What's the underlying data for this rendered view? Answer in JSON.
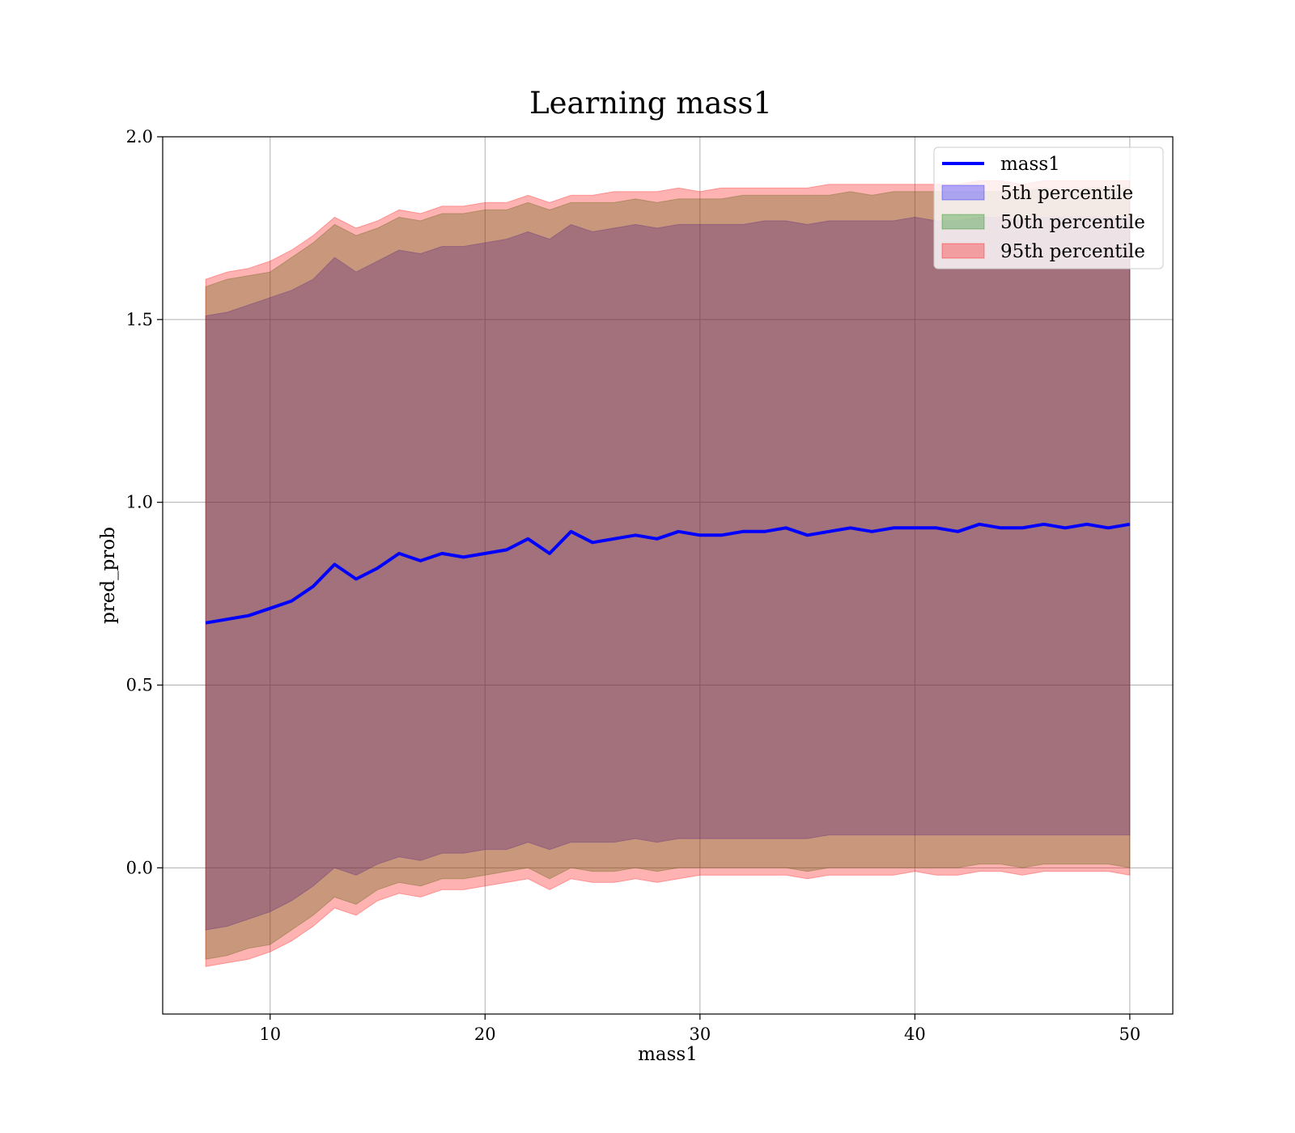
{
  "chart_data": {
    "type": "area",
    "title": "Learning mass1",
    "xlabel": "mass1",
    "ylabel": "pred_prob",
    "xlim": [
      5,
      52
    ],
    "ylim": [
      -0.4,
      2.0
    ],
    "xticks": [
      10,
      20,
      30,
      40,
      50
    ],
    "xtick_labels": [
      "10",
      "20",
      "30",
      "40",
      "50"
    ],
    "yticks": [
      0.0,
      0.5,
      1.0,
      1.5,
      2.0
    ],
    "ytick_labels": [
      "0.0",
      "0.5",
      "1.0",
      "1.5",
      "2.0"
    ],
    "grid": true,
    "legend_position": "top-right",
    "x": [
      7,
      8,
      9,
      10,
      11,
      12,
      13,
      14,
      15,
      16,
      17,
      18,
      19,
      20,
      21,
      22,
      23,
      24,
      25,
      26,
      27,
      28,
      29,
      30,
      31,
      32,
      33,
      34,
      35,
      36,
      37,
      38,
      39,
      40,
      41,
      42,
      43,
      44,
      45,
      46,
      47,
      48,
      49,
      50
    ],
    "line": {
      "name": "mass1",
      "color": "#0000ff",
      "values": [
        0.67,
        0.68,
        0.69,
        0.71,
        0.73,
        0.77,
        0.83,
        0.79,
        0.82,
        0.86,
        0.84,
        0.86,
        0.85,
        0.86,
        0.87,
        0.9,
        0.86,
        0.92,
        0.89,
        0.9,
        0.91,
        0.9,
        0.92,
        0.91,
        0.91,
        0.92,
        0.92,
        0.93,
        0.91,
        0.92,
        0.93,
        0.92,
        0.93,
        0.93,
        0.93,
        0.92,
        0.94,
        0.93,
        0.93,
        0.94,
        0.93,
        0.94,
        0.93,
        0.94
      ]
    },
    "bands": [
      {
        "name": "5th percentile",
        "color": "#0000ff",
        "lower": [
          -0.17,
          -0.16,
          -0.14,
          -0.12,
          -0.09,
          -0.05,
          0.0,
          -0.02,
          0.01,
          0.03,
          0.02,
          0.04,
          0.04,
          0.05,
          0.05,
          0.07,
          0.05,
          0.07,
          0.07,
          0.07,
          0.08,
          0.07,
          0.08,
          0.08,
          0.08,
          0.08,
          0.08,
          0.08,
          0.08,
          0.09,
          0.09,
          0.09,
          0.09,
          0.09,
          0.09,
          0.09,
          0.09,
          0.09,
          0.09,
          0.09,
          0.09,
          0.09,
          0.09,
          0.09
        ],
        "upper": [
          1.51,
          1.52,
          1.54,
          1.56,
          1.58,
          1.61,
          1.67,
          1.63,
          1.66,
          1.69,
          1.68,
          1.7,
          1.7,
          1.71,
          1.72,
          1.74,
          1.72,
          1.76,
          1.74,
          1.75,
          1.76,
          1.75,
          1.76,
          1.76,
          1.76,
          1.76,
          1.77,
          1.77,
          1.76,
          1.77,
          1.77,
          1.77,
          1.77,
          1.78,
          1.77,
          1.77,
          1.78,
          1.78,
          1.77,
          1.78,
          1.78,
          1.78,
          1.78,
          1.78
        ]
      },
      {
        "name": "50th percentile",
        "color": "#008000",
        "lower": [
          -0.25,
          -0.24,
          -0.22,
          -0.21,
          -0.17,
          -0.13,
          -0.08,
          -0.1,
          -0.06,
          -0.04,
          -0.05,
          -0.03,
          -0.03,
          -0.02,
          -0.01,
          0.0,
          -0.03,
          0.0,
          -0.01,
          -0.01,
          0.0,
          -0.01,
          0.0,
          0.0,
          0.0,
          0.0,
          0.0,
          0.0,
          -0.01,
          0.0,
          0.0,
          0.0,
          0.0,
          0.0,
          0.0,
          0.0,
          0.01,
          0.01,
          0.0,
          0.01,
          0.01,
          0.01,
          0.01,
          0.0
        ],
        "upper": [
          1.59,
          1.61,
          1.62,
          1.63,
          1.67,
          1.71,
          1.76,
          1.73,
          1.75,
          1.78,
          1.77,
          1.79,
          1.79,
          1.8,
          1.8,
          1.82,
          1.8,
          1.82,
          1.82,
          1.82,
          1.83,
          1.82,
          1.83,
          1.83,
          1.83,
          1.84,
          1.84,
          1.84,
          1.84,
          1.84,
          1.85,
          1.84,
          1.85,
          1.85,
          1.85,
          1.85,
          1.85,
          1.85,
          1.85,
          1.86,
          1.85,
          1.86,
          1.86,
          1.86
        ]
      },
      {
        "name": "95th percentile",
        "color": "#ff0000",
        "lower": [
          -0.27,
          -0.26,
          -0.25,
          -0.23,
          -0.2,
          -0.16,
          -0.11,
          -0.13,
          -0.09,
          -0.07,
          -0.08,
          -0.06,
          -0.06,
          -0.05,
          -0.04,
          -0.03,
          -0.06,
          -0.03,
          -0.04,
          -0.04,
          -0.03,
          -0.04,
          -0.03,
          -0.02,
          -0.02,
          -0.02,
          -0.02,
          -0.02,
          -0.03,
          -0.02,
          -0.02,
          -0.02,
          -0.02,
          -0.01,
          -0.02,
          -0.02,
          -0.01,
          -0.01,
          -0.02,
          -0.01,
          -0.01,
          -0.01,
          -0.01,
          -0.02
        ],
        "upper": [
          1.61,
          1.63,
          1.64,
          1.66,
          1.69,
          1.73,
          1.78,
          1.75,
          1.77,
          1.8,
          1.79,
          1.81,
          1.81,
          1.82,
          1.82,
          1.84,
          1.82,
          1.84,
          1.84,
          1.85,
          1.85,
          1.85,
          1.86,
          1.85,
          1.86,
          1.86,
          1.86,
          1.86,
          1.86,
          1.87,
          1.87,
          1.87,
          1.87,
          1.87,
          1.87,
          1.87,
          1.88,
          1.88,
          1.87,
          1.88,
          1.88,
          1.88,
          1.88,
          1.88
        ]
      }
    ],
    "legend": [
      "mass1",
      "5th percentile",
      "50th percentile",
      "95th percentile"
    ]
  }
}
